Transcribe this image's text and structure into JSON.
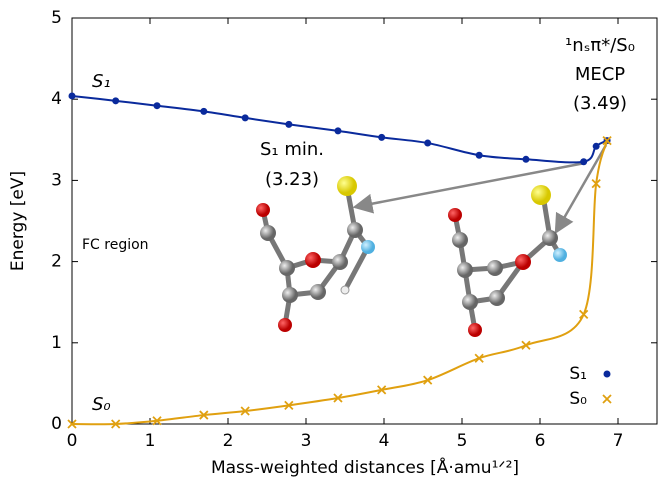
{
  "chart_data": {
    "type": "line",
    "x_label": "Mass-weighted distances [Å·amu¹ᐟ²]",
    "y_label": "Energy [eV]",
    "xlim": [
      0,
      7.5
    ],
    "xticks": [
      0,
      1,
      2,
      3,
      4,
      5,
      6,
      7
    ],
    "ylim": [
      0,
      5
    ],
    "yticks": [
      0,
      1,
      2,
      3,
      4,
      5
    ],
    "x": [
      0,
      0.56,
      1.09,
      1.69,
      2.22,
      2.78,
      3.41,
      3.97,
      4.56,
      5.22,
      5.82,
      6.56,
      6.72,
      6.86
    ],
    "series": [
      {
        "name": "S₁",
        "color": "#0a2a9c",
        "marker": "dot",
        "values": [
          4.04,
          3.98,
          3.92,
          3.85,
          3.77,
          3.69,
          3.61,
          3.53,
          3.46,
          3.31,
          3.26,
          3.23,
          3.42,
          3.49
        ]
      },
      {
        "name": "S₀",
        "color": "#e0a010",
        "marker": "cross",
        "values": [
          0,
          0,
          0.04,
          0.11,
          0.16,
          0.23,
          0.32,
          0.42,
          0.54,
          0.81,
          0.97,
          1.35,
          2.96,
          3.49
        ]
      }
    ],
    "legend": "lower right",
    "annotations": {
      "s1_label": "S₁",
      "s0_label": "S₀",
      "mecp_state": "¹nₛπ*/S₀",
      "mecp": "MECP",
      "mecp_value": "(3.49)",
      "s1min": "S₁ min.",
      "s1min_value": "(3.23)",
      "fc": "FC region"
    }
  }
}
